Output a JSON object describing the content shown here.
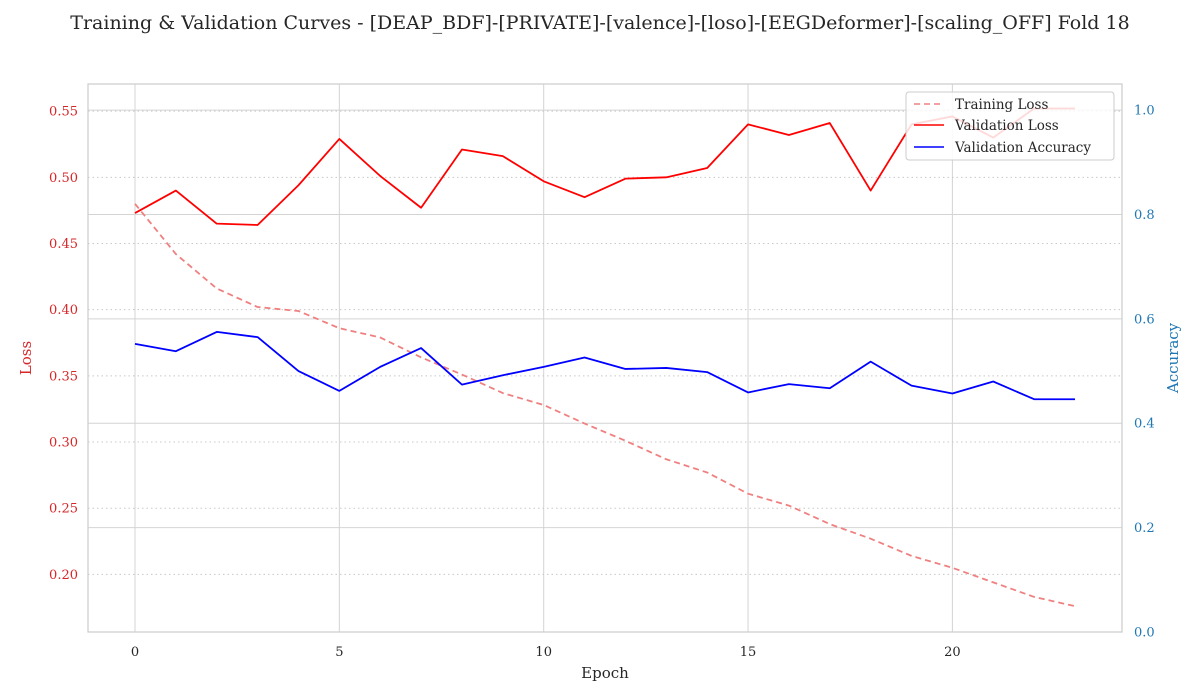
{
  "chart_data": {
    "type": "line",
    "title": "Training & Validation Curves - [DEAP_BDF]-[PRIVATE]-[valence]-[loso]-[EEGDeformer]-[scaling_OFF] Fold 18",
    "xlabel": "Epoch",
    "ylabel_left": "Loss",
    "ylabel_right": "Accuracy",
    "xlim": [
      -1.15,
      24.15
    ],
    "ylim_left": [
      0.1565,
      0.5705
    ],
    "ylim_right": [
      0.0,
      1.05
    ],
    "x_ticks": [
      0,
      5,
      10,
      15,
      20
    ],
    "y_ticks_left": [
      "0.20",
      "0.25",
      "0.30",
      "0.35",
      "0.40",
      "0.45",
      "0.50",
      "0.55"
    ],
    "y_ticks_right": [
      "0.0",
      "0.2",
      "0.4",
      "0.6",
      "0.8",
      "1.0"
    ],
    "x": [
      0,
      1,
      2,
      3,
      4,
      5,
      6,
      7,
      8,
      9,
      10,
      11,
      12,
      13,
      14,
      15,
      16,
      17,
      18,
      19,
      20,
      21,
      22,
      23
    ],
    "grid": true,
    "legend_position": "top-right",
    "series": [
      {
        "name": "Training Loss",
        "axis": "left",
        "color": "#f08080",
        "style": "dashed",
        "values": [
          0.48,
          0.442,
          0.416,
          0.402,
          0.399,
          0.386,
          0.379,
          0.364,
          0.351,
          0.337,
          0.328,
          0.314,
          0.301,
          0.287,
          0.277,
          0.261,
          0.252,
          0.238,
          0.227,
          0.214,
          0.205,
          0.194,
          0.183,
          0.176
        ]
      },
      {
        "name": "Validation Loss",
        "axis": "left",
        "color": "#ff0000",
        "style": "solid",
        "values": [
          0.473,
          0.49,
          0.465,
          0.464,
          0.494,
          0.529,
          0.501,
          0.477,
          0.521,
          0.516,
          0.497,
          0.485,
          0.499,
          0.5,
          0.507,
          0.54,
          0.532,
          0.541,
          0.49,
          0.54,
          0.546,
          0.53,
          0.552,
          0.552
        ]
      },
      {
        "name": "Validation Accuracy",
        "axis": "right",
        "color": "#0000ff",
        "style": "solid",
        "values": [
          0.552,
          0.538,
          0.575,
          0.565,
          0.5,
          0.462,
          0.508,
          0.544,
          0.474,
          0.492,
          0.508,
          0.526,
          0.504,
          0.506,
          0.498,
          0.459,
          0.475,
          0.467,
          0.518,
          0.472,
          0.457,
          0.48,
          0.446,
          0.446
        ]
      }
    ]
  }
}
